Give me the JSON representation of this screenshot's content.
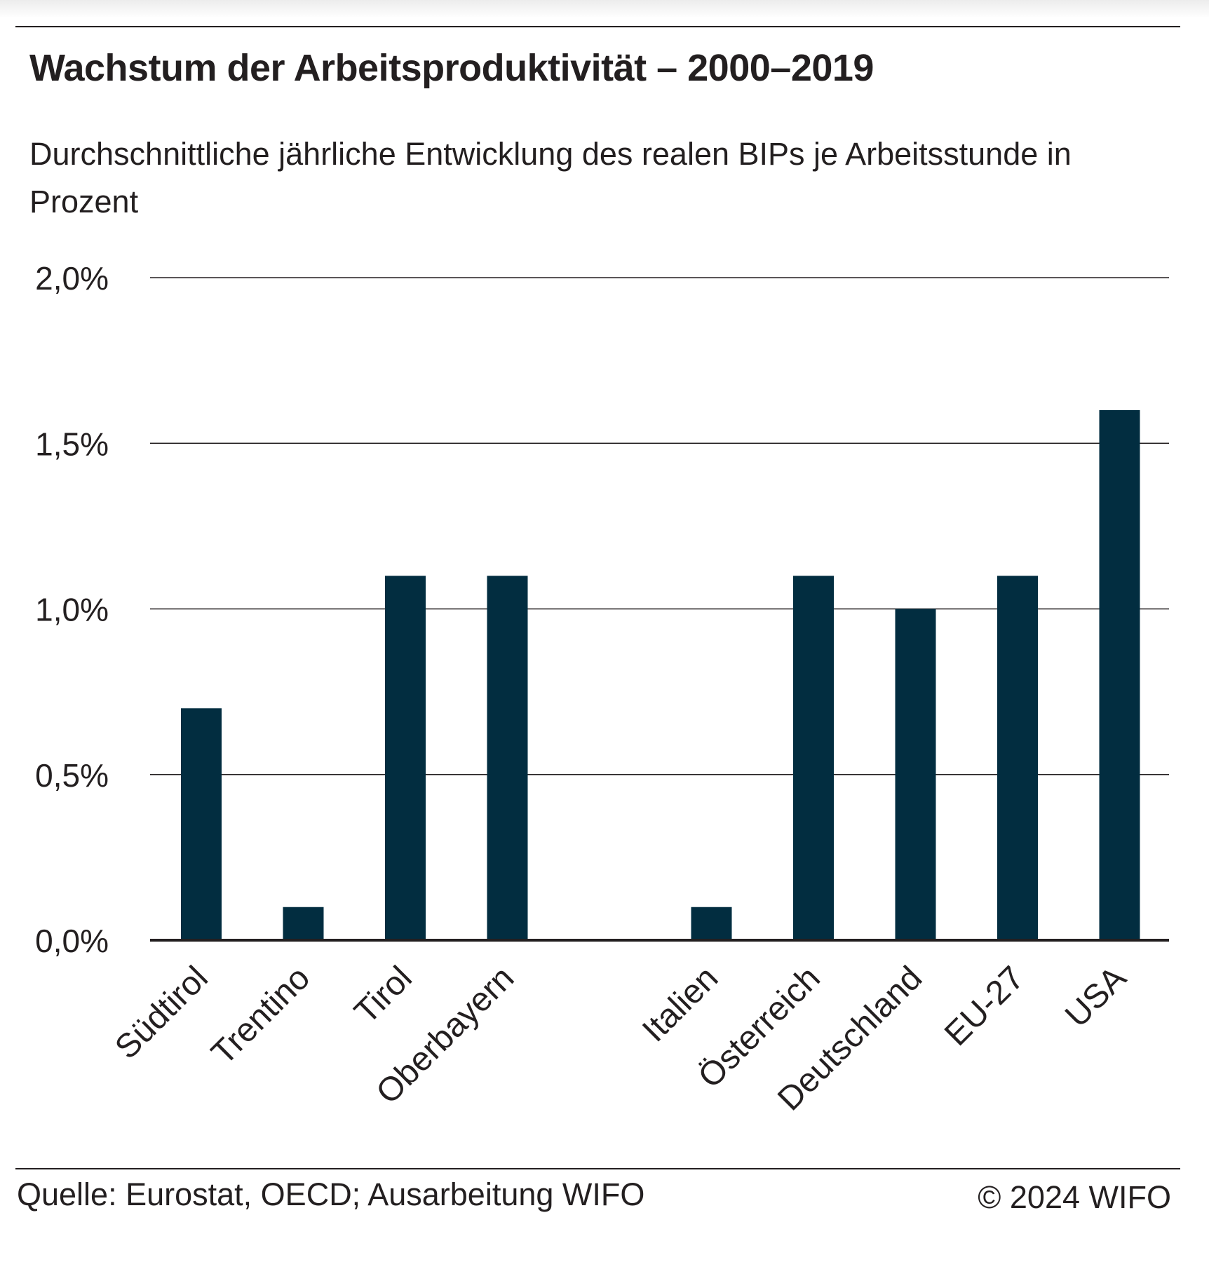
{
  "header": {
    "title": "Wachstum der Arbeitsproduktivität – 2000–2019",
    "subtitle": "Durchschnittliche jährliche Entwicklung des realen BIPs je Arbeitsstunde in Prozent"
  },
  "footer": {
    "source": "Quelle: Eurostat, OECD; Ausarbeitung WIFO",
    "copyright": "© 2024 WIFO"
  },
  "colors": {
    "bar": "#022d40",
    "text": "#231f20",
    "grid": "#231f20"
  },
  "chart_data": {
    "type": "bar",
    "title": "Wachstum der Arbeitsproduktivität – 2000–2019",
    "subtitle": "Durchschnittliche jährliche Entwicklung des realen BIPs je Arbeitsstunde in Prozent",
    "xlabel": "",
    "ylabel": "",
    "categories": [
      "Südtirol",
      "Trentino",
      "Tirol",
      "Oberbayern",
      "Italien",
      "Österreich",
      "Deutschland",
      "EU-27",
      "USA"
    ],
    "slot_index": [
      0,
      1,
      2,
      3,
      5,
      6,
      7,
      8,
      9
    ],
    "values": [
      0.7,
      0.1,
      1.1,
      1.1,
      0.1,
      1.1,
      1.0,
      1.1,
      1.6
    ],
    "ylim": [
      0,
      2.0
    ],
    "yticks": [
      0,
      0.5,
      1.0,
      1.5,
      2.0
    ],
    "ytick_labels": [
      "0,0%",
      "0,5%",
      "1,0%",
      "1,5%",
      "2,0%"
    ],
    "grid": true,
    "legend": "none"
  }
}
